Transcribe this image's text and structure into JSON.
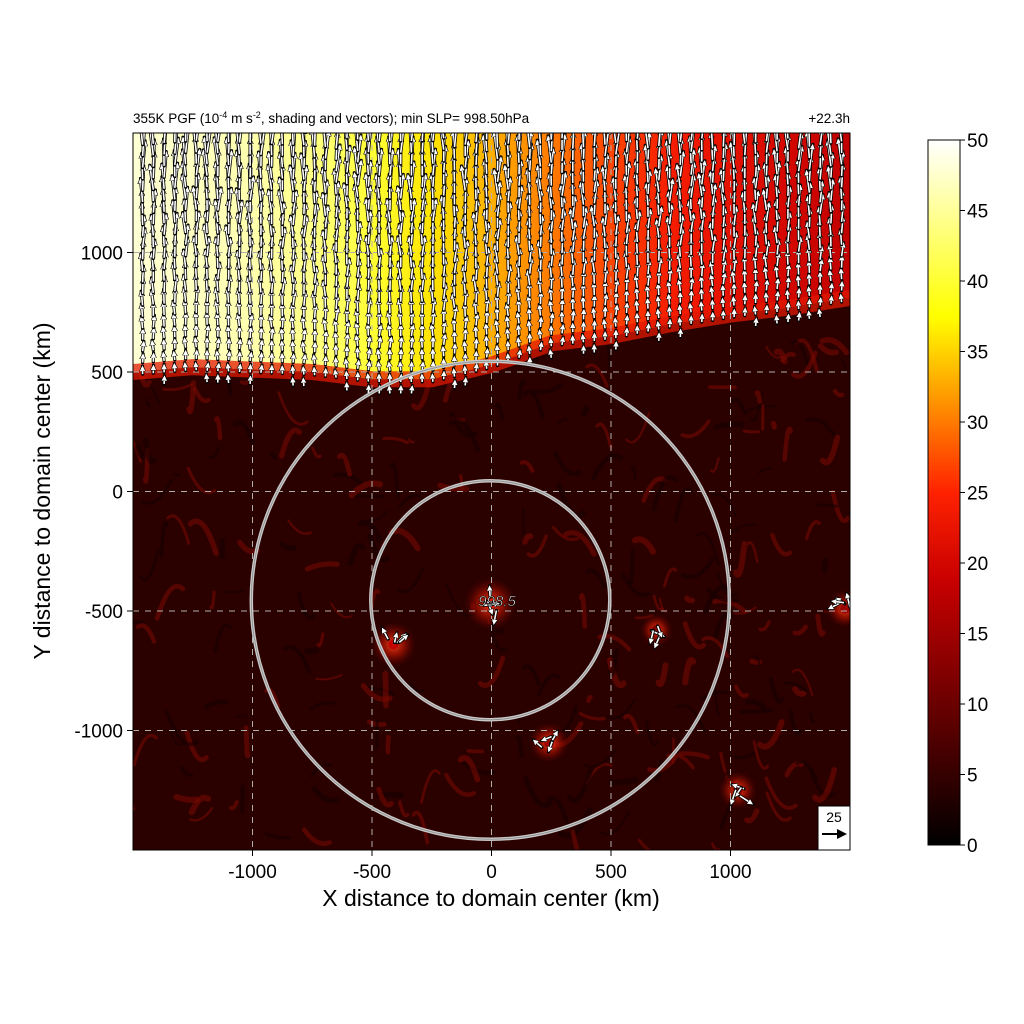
{
  "chart_data": {
    "type": "heatmap",
    "title": {
      "prefix": "355K PGF (10",
      "exponent_1": "-4",
      "middle": " m s",
      "exponent_2": "-2",
      "suffix": ", shading and vectors); min SLP= 998.50hPa"
    },
    "time_label": "+22.3h",
    "xlabel": "X distance to domain center (km)",
    "ylabel": "Y distance to domain center (km)",
    "xlim": [
      -1500,
      1500
    ],
    "ylim": [
      -1500,
      1500
    ],
    "x_ticks": [
      -1000,
      -500,
      0,
      500,
      1000
    ],
    "y_ticks": [
      -1000,
      -500,
      0,
      500,
      1000
    ],
    "x_tick_labels": [
      "-1000",
      "-500",
      "0",
      "500",
      "1000"
    ],
    "y_tick_labels": [
      "-1000",
      "-500",
      "0",
      "500",
      "1000"
    ],
    "grid": true,
    "colorbar": {
      "range": [
        0,
        50
      ],
      "ticks": [
        0,
        5,
        10,
        15,
        20,
        25,
        30,
        35,
        40,
        45,
        50
      ],
      "tick_labels": [
        "0",
        "5",
        "10",
        "15",
        "20",
        "25",
        "30",
        "35",
        "40",
        "45",
        "50"
      ],
      "colormap": "hot"
    },
    "center": {
      "x": -5,
      "y": -455,
      "label": "998.5"
    },
    "range_rings_km": [
      500,
      1000
    ],
    "reference_vector": {
      "label": "25",
      "value": 25
    },
    "front_boundary": {
      "x": [
        -1500,
        -1250,
        -1000,
        -750,
        -500,
        -250,
        0,
        250,
        500,
        750,
        1000,
        1250,
        1500
      ],
      "y": [
        500,
        520,
        510,
        500,
        470,
        470,
        530,
        620,
        650,
        700,
        740,
        770,
        810
      ]
    },
    "northern_field": {
      "x": [
        -1500,
        -1250,
        -1000,
        -750,
        -500,
        -250,
        0,
        250,
        500,
        750,
        1000,
        1250,
        1500
      ],
      "top_value": [
        48,
        47,
        46,
        44,
        40,
        36,
        33,
        30,
        27,
        24,
        22,
        20,
        18
      ]
    },
    "hotspots": [
      {
        "x": -5,
        "y": -470,
        "value": 22
      },
      {
        "x": -410,
        "y": -640,
        "value": 18
      },
      {
        "x": 240,
        "y": -1050,
        "value": 15
      },
      {
        "x": 1030,
        "y": -1250,
        "value": 14
      },
      {
        "x": 1480,
        "y": -490,
        "value": 14
      },
      {
        "x": 690,
        "y": -580,
        "value": 11
      }
    ],
    "colors": {
      "background": "#ffffff",
      "ring": "#c8c8c8",
      "grid": "#b0b0b0"
    }
  }
}
